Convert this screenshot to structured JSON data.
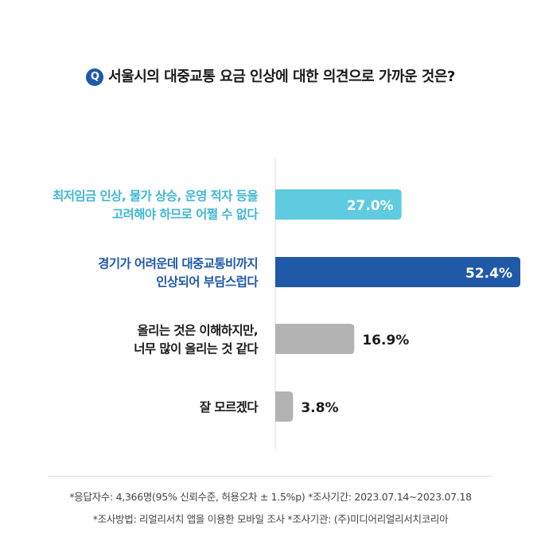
{
  "question": {
    "icon_label": "Q",
    "text": "서울시의 대중교통 요금 인상에 대한 의견으로 가까운 것은?"
  },
  "chart_data": {
    "type": "bar",
    "orientation": "horizontal",
    "categories": [
      [
        "최저임금 인상, 물가 상승, 운영 적자 등을",
        "고려해야 하므로 어쩔 수 없다"
      ],
      [
        "경기가 어려운데 대중교통비까지",
        "인상되어 부담스럽다"
      ],
      [
        "올리는 것은 이해하지만,",
        "너무 많이 올리는 것 같다"
      ],
      [
        "잘 모르겠다"
      ]
    ],
    "values": [
      27.0,
      52.4,
      16.9,
      3.8
    ],
    "value_labels": [
      "27.0%",
      "52.4%",
      "16.9%",
      "3.8%"
    ],
    "bar_colors": [
      "#5ecbe0",
      "#1f59a8",
      "#b3b3b3",
      "#b3b3b3"
    ],
    "label_colors": [
      "#3fb6d4",
      "#1f59a8",
      "#1a1a1a",
      "#1a1a1a"
    ],
    "value_label_inside": [
      true,
      true,
      false,
      false
    ],
    "xlim": [
      0,
      52.4
    ]
  },
  "footnotes": [
    "*응답자수: 4,366명(95% 신뢰수준, 허용오차 ± 1.5%p)  *조사기간: 2023.07.14~2023.07.18",
    "*조사방법: 리얼리서치 앱을 이용한 모바일 조사  *조사기관: (주)미디어리얼리서치코리아"
  ]
}
